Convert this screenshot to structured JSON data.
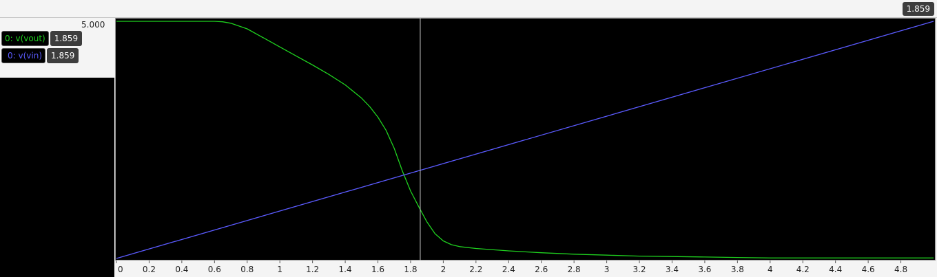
{
  "cursor": {
    "value": "1.859"
  },
  "y_max_label": "5.000",
  "traces": [
    {
      "label": "0: v(vout)",
      "value": "1.859",
      "color": "#1fd11f"
    },
    {
      "label": "0: v(vin)",
      "value": "1.859",
      "color": "#5b5bff"
    }
  ],
  "chart_data": {
    "type": "line",
    "xlim": [
      0,
      5
    ],
    "ylim": [
      0,
      5
    ],
    "x_ticks": [
      "0",
      "0.2",
      "0.4",
      "0.6",
      "0.8",
      "1",
      "1.2",
      "1.4",
      "1.6",
      "1.8",
      "2",
      "2.2",
      "2.4",
      "2.6",
      "2.8",
      "3",
      "3.2",
      "3.4",
      "3.6",
      "3.8",
      "4",
      "4.2",
      "4.4",
      "4.6",
      "4.8"
    ],
    "cursor_x": 1.859,
    "grid": false,
    "series": [
      {
        "name": "0: v(vout)",
        "color": "#1fd11f",
        "x": [
          0,
          0.6,
          0.65,
          0.7,
          0.8,
          0.9,
          1.0,
          1.1,
          1.2,
          1.3,
          1.4,
          1.5,
          1.55,
          1.6,
          1.65,
          1.7,
          1.75,
          1.8,
          1.85,
          1.9,
          1.95,
          2.0,
          2.05,
          2.1,
          2.2,
          2.4,
          2.6,
          2.8,
          3.0,
          3.2,
          3.4,
          3.6,
          3.8,
          4.0,
          4.2,
          4.4,
          4.6,
          4.8,
          5.0
        ],
        "y": [
          5,
          5,
          4.99,
          4.96,
          4.84,
          4.65,
          4.46,
          4.27,
          4.08,
          3.88,
          3.66,
          3.38,
          3.2,
          2.98,
          2.7,
          2.32,
          1.84,
          1.42,
          1.09,
          0.77,
          0.52,
          0.37,
          0.29,
          0.25,
          0.21,
          0.16,
          0.12,
          0.09,
          0.07,
          0.05,
          0.04,
          0.03,
          0.02,
          0.01,
          0.01,
          0.01,
          0.01,
          0.01,
          0.01
        ]
      },
      {
        "name": "0: v(vin)",
        "color": "#5b5bff",
        "x": [
          0,
          5
        ],
        "y": [
          0,
          5
        ]
      }
    ]
  }
}
